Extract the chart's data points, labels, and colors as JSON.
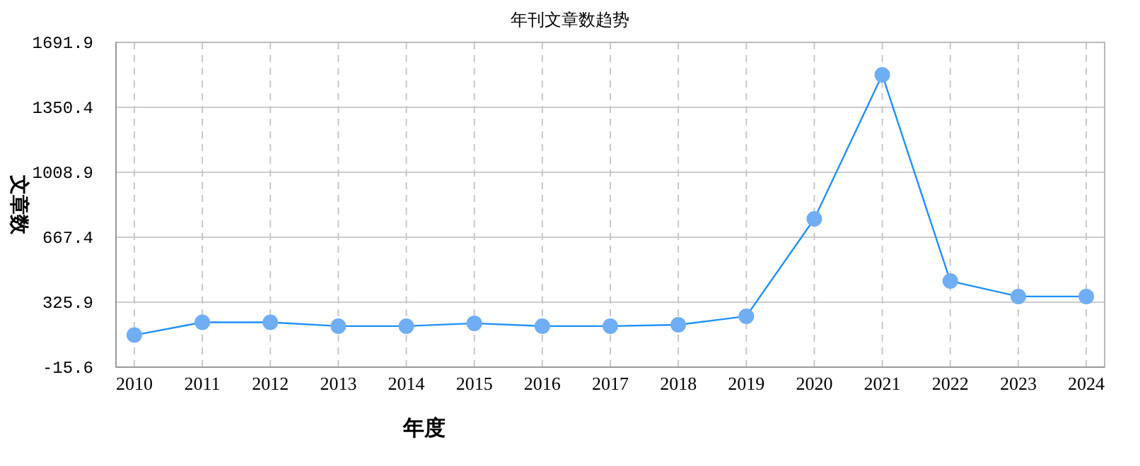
{
  "chart_data": {
    "type": "line",
    "title": "年刊文章数趋势",
    "xlabel": "年度",
    "ylabel": "文章数",
    "categories": [
      "2010",
      "2011",
      "2012",
      "2013",
      "2014",
      "2015",
      "2016",
      "2017",
      "2018",
      "2019",
      "2020",
      "2021",
      "2022",
      "2023",
      "2024"
    ],
    "series": [
      {
        "color": "#1e90ff",
        "values": [
          153,
          220,
          220,
          200,
          200,
          215,
          200,
          200,
          207,
          252,
          764,
          1521,
          437,
          356,
          356
        ]
      }
    ],
    "ylim": [
      -15.6,
      1691.9
    ],
    "yticks": [
      -15.6,
      325.9,
      667.4,
      1008.9,
      1350.4,
      1691.9
    ],
    "grid": true,
    "marker": "circle",
    "line_style": "solid"
  }
}
